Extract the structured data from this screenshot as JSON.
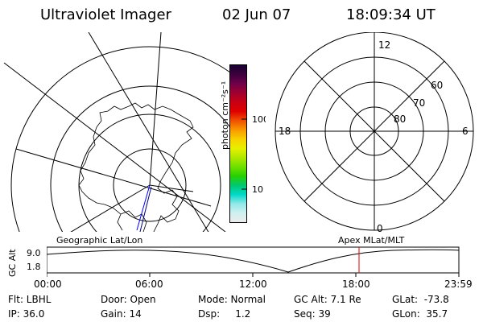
{
  "header": {
    "title": "Ultraviolet Imager",
    "date": "02 Jun 07",
    "time": "18:09:34 UT"
  },
  "colorbar": {
    "label": "photon cm⁻²s⁻¹",
    "tick_labels": [
      "100",
      "10"
    ],
    "colors": [
      "#1a0030",
      "#3c003c",
      "#70004a",
      "#a00030",
      "#c80014",
      "#e00000",
      "#f05000",
      "#f89800",
      "#f8d000",
      "#e8f000",
      "#b0e800",
      "#70e000",
      "#28d000",
      "#00c870",
      "#00d8c8",
      "#90e8e8",
      "#d0f0f0",
      "#ececec"
    ]
  },
  "polar_plot": {
    "mlt_labels": [
      "12",
      "18",
      "6",
      "0"
    ],
    "lat_labels": [
      "60",
      "70",
      "80"
    ]
  },
  "timeline": {
    "left_label": "Geographic Lat/Lon",
    "right_label": "Apex  MLat/MLT",
    "ylabel": "GC Alt",
    "y_ticks": [
      "9.0",
      "1.8"
    ],
    "x_ticks": [
      "00:00",
      "06:00",
      "12:00",
      "18:00",
      "23:59"
    ],
    "marker_color": "#e00000"
  },
  "footer": {
    "filter": "Flt: LBHL",
    "ip": "IP: 36.0",
    "door": "Door: Open",
    "gain": "Gain: 14",
    "mode": "Mode: Normal",
    "dsp": "Dsp:     1.2",
    "gc_alt": "GC Alt: 7.1 Re",
    "seq": "Seq: 39",
    "glat": "GLat:  -73.8",
    "glon": "GLon:  35.7"
  }
}
